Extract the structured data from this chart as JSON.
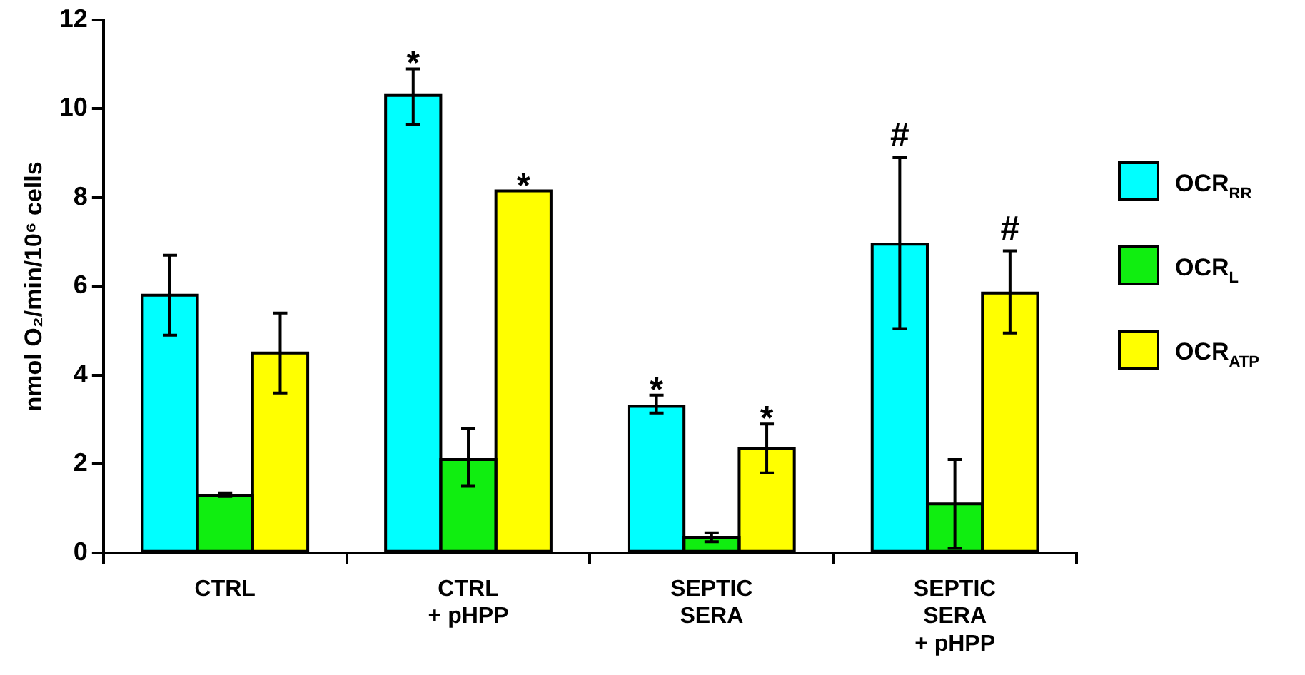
{
  "chart_data": {
    "type": "bar",
    "ylabel": "nmol O₂/min/10⁶ cells",
    "categories": [
      "CTRL",
      "CTRL\n+ pHPP",
      "SEPTIC\nSERA",
      "SEPTIC\nSERA\n+ pHPP"
    ],
    "series": [
      {
        "name": "OCR$_{RR}$",
        "color": "#00ffff",
        "values": [
          5.8,
          10.3,
          3.3,
          6.95
        ],
        "errors": [
          [
            4.9,
            6.7
          ],
          [
            9.65,
            10.9
          ],
          [
            3.15,
            3.55
          ],
          [
            5.05,
            8.9
          ]
        ]
      },
      {
        "name": "OCR$_{L}$",
        "color": "#10ee10",
        "values": [
          1.3,
          2.1,
          0.35,
          1.1
        ],
        "errors": [
          [
            1.27,
            1.35
          ],
          [
            1.5,
            2.8
          ],
          [
            0.25,
            0.45
          ],
          [
            0.1,
            2.1
          ]
        ]
      },
      {
        "name": "OCR$_{ATP}$",
        "color": "#ffff00",
        "values": [
          4.5,
          8.15,
          2.35,
          5.85
        ],
        "errors": [
          [
            3.6,
            5.4
          ],
          null,
          [
            1.8,
            2.9
          ],
          [
            4.95,
            6.8
          ]
        ]
      }
    ],
    "annotations": [
      "*",
      "*",
      "*",
      "*",
      "#",
      "#"
    ],
    "ylim": [
      0,
      12
    ],
    "yticks": [
      0,
      2,
      4,
      6,
      8,
      10,
      12
    ],
    "grid": false,
    "legend": "right"
  }
}
